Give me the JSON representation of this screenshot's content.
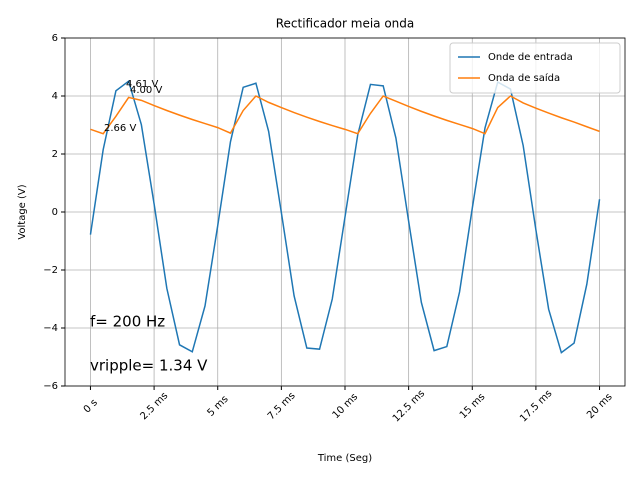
{
  "chart_data": {
    "type": "line",
    "title": "Rectificador meia onda",
    "x_label": "Time (Seg)",
    "y_label": "Voltage (V)",
    "x": [
      0,
      0.5,
      1,
      1.5,
      2,
      2.5,
      3,
      3.5,
      4,
      4.5,
      5,
      5.5,
      6,
      6.5,
      7,
      7.5,
      8,
      8.5,
      9,
      9.5,
      10,
      10.5,
      11,
      11.5,
      12,
      12.5,
      13,
      13.5,
      14,
      14.5,
      15,
      15.5,
      16,
      16.5,
      17,
      17.5,
      18,
      18.5,
      19,
      19.5,
      20
    ],
    "series": [
      {
        "name": "Onde de entrada",
        "color": "#1f77b4",
        "values": [
          -0.78,
          2.15,
          4.18,
          4.51,
          3.01,
          0.28,
          -2.63,
          -4.58,
          -4.82,
          -3.24,
          -0.47,
          2.42,
          4.3,
          4.44,
          2.78,
          -0.02,
          -2.89,
          -4.69,
          -4.73,
          -3.0,
          -0.17,
          2.66,
          4.4,
          4.35,
          2.55,
          -0.32,
          -3.12,
          -4.78,
          -4.64,
          -2.76,
          0.13,
          2.9,
          4.48,
          4.24,
          2.29,
          -0.62,
          -3.35,
          -4.85,
          -4.52,
          -2.49,
          0.44
        ]
      },
      {
        "name": "Onda de saída",
        "color": "#ff7f0e",
        "values": [
          2.85,
          2.7,
          3.3,
          3.95,
          3.85,
          3.67,
          3.5,
          3.34,
          3.19,
          3.05,
          2.91,
          2.72,
          3.5,
          4.0,
          3.78,
          3.6,
          3.43,
          3.27,
          3.12,
          2.98,
          2.85,
          2.7,
          3.4,
          4.0,
          3.82,
          3.64,
          3.47,
          3.31,
          3.16,
          3.02,
          2.88,
          2.7,
          3.6,
          4.0,
          3.76,
          3.58,
          3.41,
          3.25,
          3.1,
          2.94,
          2.78
        ]
      }
    ],
    "xlim": [
      -1,
      21
    ],
    "ylim": [
      -6,
      6
    ],
    "xticks": [
      {
        "value": 0,
        "label": "0 s"
      },
      {
        "value": 2.5,
        "label": "2.5 ms"
      },
      {
        "value": 5,
        "label": "5 ms"
      },
      {
        "value": 7.5,
        "label": "7.5 ms"
      },
      {
        "value": 10,
        "label": "10 ms"
      },
      {
        "value": 12.5,
        "label": "12.5 ms"
      },
      {
        "value": 15,
        "label": "15 ms"
      },
      {
        "value": 17.5,
        "label": "17.5 ms"
      },
      {
        "value": 20,
        "label": "20 ms"
      }
    ],
    "yticks": [
      {
        "value": -6,
        "label": "−6"
      },
      {
        "value": -4,
        "label": "−4"
      },
      {
        "value": -2,
        "label": "−2"
      },
      0,
      2,
      4,
      6
    ],
    "grid": true,
    "legend": "upper right",
    "annotations": [
      {
        "text": "4.61 V",
        "color": "#0000cc"
      },
      {
        "text": "4.00 V",
        "color": "#ff9f1c"
      },
      {
        "text": "2.66 V",
        "color": "#ff9f1c"
      },
      {
        "text": "f= 200 Hz",
        "color": "#ff0000"
      },
      {
        "text": "vripple= 1.34 V",
        "color": "#ff0000"
      }
    ]
  }
}
